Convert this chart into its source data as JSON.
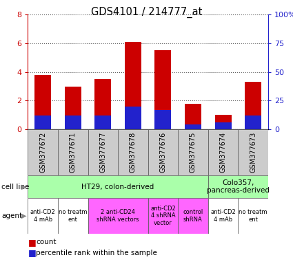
{
  "title": "GDS4101 / 214777_at",
  "samples": [
    "GSM377672",
    "GSM377671",
    "GSM377677",
    "GSM377678",
    "GSM377676",
    "GSM377675",
    "GSM377674",
    "GSM377673"
  ],
  "count_values": [
    3.8,
    3.0,
    3.5,
    6.1,
    5.5,
    1.8,
    1.0,
    3.3
  ],
  "percentile_values": [
    12,
    12,
    12,
    20,
    17,
    4,
    6,
    12
  ],
  "ylim_left": [
    0,
    8
  ],
  "ylim_right": [
    0,
    100
  ],
  "yticks_left": [
    0,
    2,
    4,
    6,
    8
  ],
  "yticks_right": [
    0,
    25,
    50,
    75,
    100
  ],
  "ytick_labels_right": [
    "0",
    "25",
    "50",
    "75",
    "100%"
  ],
  "bar_color_red": "#cc0000",
  "bar_color_blue": "#2222cc",
  "cell_line_groups": [
    {
      "label": "HT29, colon-derived",
      "start": 0,
      "end": 6,
      "color": "#aaffaa"
    },
    {
      "label": "Colo357,\npancreas-derived",
      "start": 6,
      "end": 8,
      "color": "#aaffaa"
    }
  ],
  "agent_groups": [
    {
      "label": "anti-CD2\n4 mAb",
      "start": 0,
      "end": 1,
      "color": "#ffffff"
    },
    {
      "label": "no treatm\nent",
      "start": 1,
      "end": 2,
      "color": "#ffffff"
    },
    {
      "label": "2 anti-CD24\nshRNA vectors",
      "start": 2,
      "end": 4,
      "color": "#ff66ff"
    },
    {
      "label": "anti-CD2\n4 shRNA\nvector",
      "start": 4,
      "end": 5,
      "color": "#ff66ff"
    },
    {
      "label": "control\nshRNA",
      "start": 5,
      "end": 6,
      "color": "#ff66ff"
    },
    {
      "label": "anti-CD2\n4 mAb",
      "start": 6,
      "end": 7,
      "color": "#ffffff"
    },
    {
      "label": "no treatm\nent",
      "start": 7,
      "end": 8,
      "color": "#ffffff"
    }
  ],
  "left_axis_color": "#cc0000",
  "right_axis_color": "#2222cc",
  "grid_color": "#555555",
  "sample_bg_color": "#cccccc",
  "cell_line_row_label": "cell line",
  "agent_row_label": "agent",
  "bg_color": "#ffffff"
}
